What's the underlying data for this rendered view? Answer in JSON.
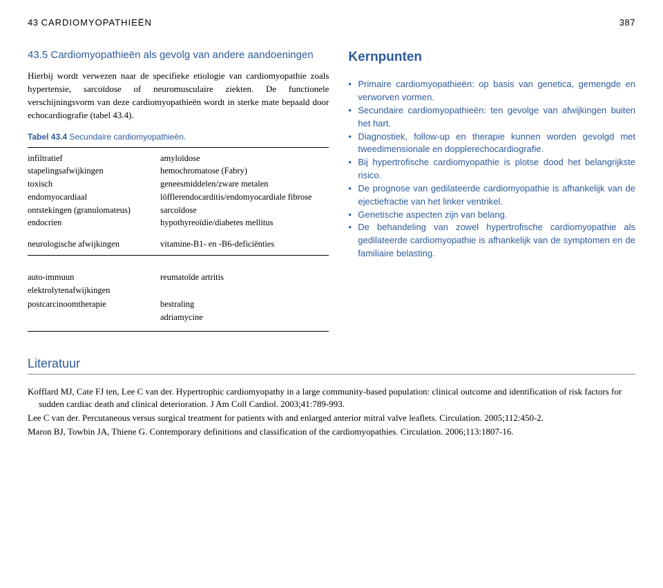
{
  "header": {
    "chapter_num": "43",
    "chapter_title": "CARDIOMYOPATHIEËN",
    "page_num": "387"
  },
  "section": {
    "number": "43.5",
    "title": "Cardiomyopathieën als gevolg van andere aandoeningen",
    "body": "Hierbij wordt verwezen naar de specifieke etiologie van cardiomyopathie zoals hypertensie, sarcoïdose of neuromusculaire ziekten. De functionele verschijningsvorm van deze cardiomyopathieën wordt in sterke mate bepaald door echocardiografie (tabel 43.4)."
  },
  "table": {
    "caption_label": "Tabel 43.4",
    "caption_text": "Secundaire cardiomyopathieën.",
    "rows1": [
      [
        "infiltratief",
        "amyloïdose"
      ],
      [
        "stapelingsafwijkingen",
        "hemochromatose (Fabry)"
      ],
      [
        "toxisch",
        "geneesmiddelen/zware metalen"
      ],
      [
        "endomyocardiaal",
        "löfflerendocarditis/endomyocardiale fibrose"
      ],
      [
        "ontstekingen (granulomateus)",
        "sarcoïdose"
      ],
      [
        "endocrien",
        "hypothyreoïdie/diabetes mellitus"
      ]
    ],
    "rows_gap": [
      [
        "neurologische afwijkingen",
        "vitamine-B1- en -B6-deficiënties"
      ]
    ],
    "rows2": [
      [
        "auto-immuun",
        "reumatoïde artritis"
      ],
      [
        "elektrolytenafwijkingen",
        ""
      ],
      [
        "postcarcinoomtherapie",
        "bestraling"
      ],
      [
        "",
        "adriamycine"
      ]
    ]
  },
  "kernpunten": {
    "title": "Kernpunten",
    "items": [
      "Primaire cardiomyopathieën: op basis van genetica, gemengde en verworven vormen.",
      "Secundaire cardiomyopathieën: ten gevolge van afwijkingen buiten het hart.",
      "Diagnostiek, follow-up en therapie kunnen worden gevolgd met tweedimensionale en dopplerechocardiografie.",
      "Bij hypertrofische cardiomyopathie is plotse dood het belangrijkste risico.",
      "De prognose van gedilateerde cardiomyopathie is afhankelijk van de ejectiefractie van het linker ventrikel.",
      "Genetische aspecten zijn van belang.",
      "De behandeling van zowel hypertrofische cardiomyopathie als gedilateerde cardiomyopathie is afhankelijk van de symptomen en de familiaire belasting."
    ]
  },
  "literatuur": {
    "heading": "Literatuur",
    "refs": [
      "Kofflard MJ, Cate FJ ten, Lee C van der. Hypertrophic cardiomyopathy in a large community-based population: clinical outcome and identification of risk factors for sudden cardiac death and clinical deterioration. J Am Coll Cardiol. 2003;41:789-993.",
      "Lee C van der. Percutaneous versus surgical treatment for patients with and enlarged anterior mitral valve leaflets. Circulation. 2005;112:450-2.",
      "Maron BJ, Towbin JA, Thiene G. Contemporary definitions and classification of the cardiomyopathies. Circulation. 2006;113:1807-16."
    ]
  },
  "colors": {
    "accent": "#2d5b9a",
    "text": "#000000",
    "background": "#ffffff",
    "rule": "#888888"
  }
}
